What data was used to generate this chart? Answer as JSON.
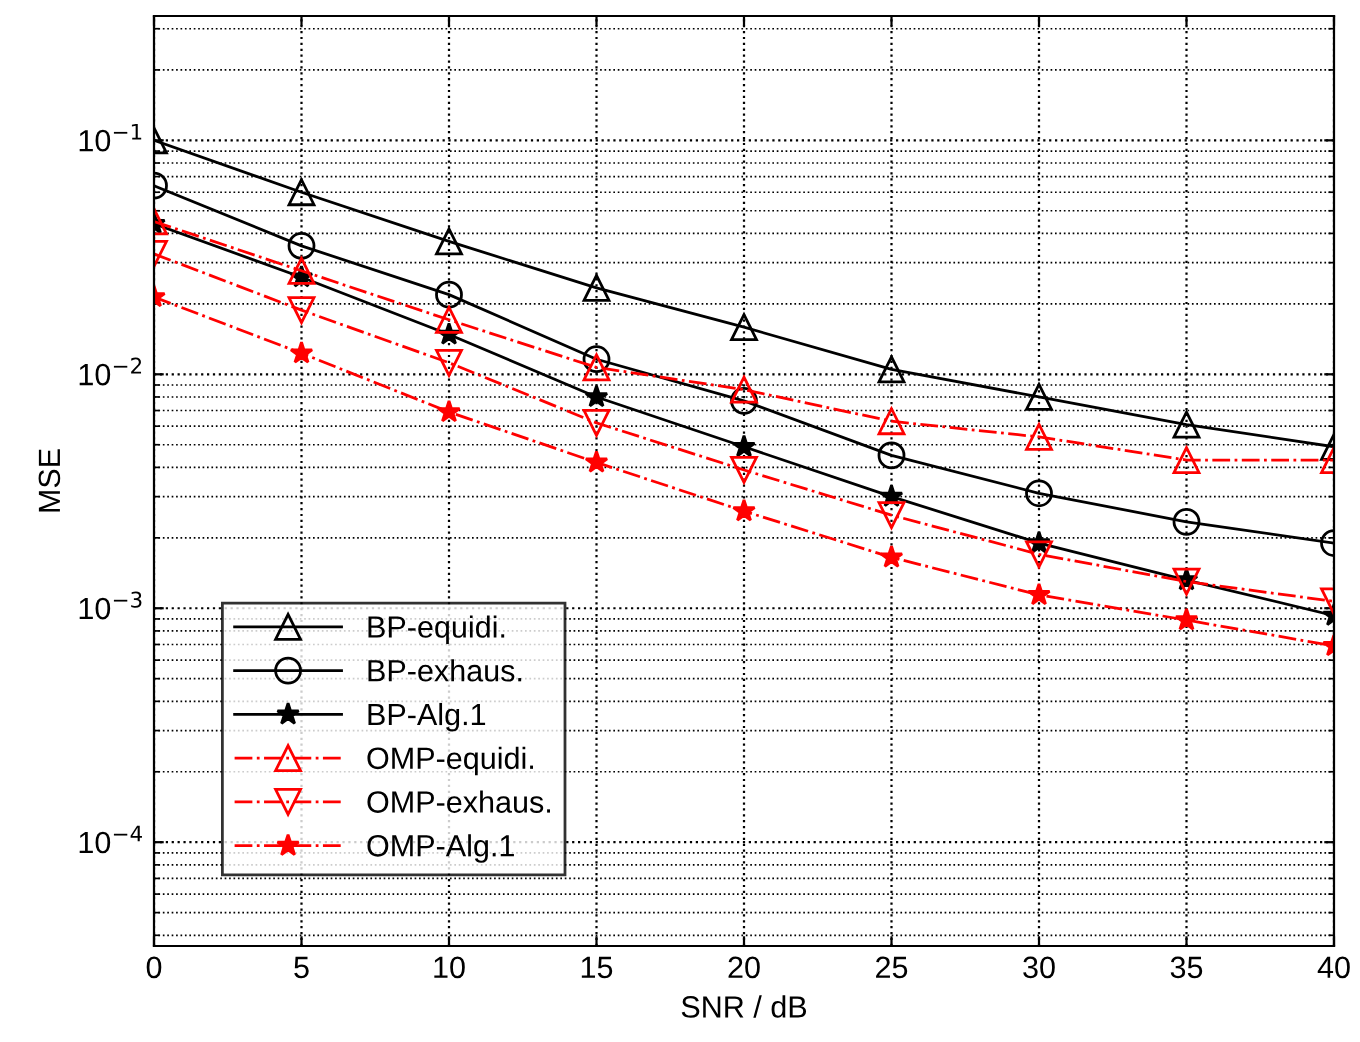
{
  "chart_data": {
    "type": "line",
    "xlabel": "SNR / dB",
    "ylabel": "MSE",
    "log": "y",
    "grid": true,
    "legend": "bottom left",
    "x": [
      0,
      5,
      10,
      15,
      20,
      25,
      30,
      35,
      40
    ],
    "xlim": [
      0,
      40
    ],
    "xticks": [
      0,
      5,
      10,
      15,
      20,
      25,
      30,
      35,
      40
    ],
    "ylim": [
      3.6e-05,
      0.34
    ],
    "yticks": [
      {
        "value": 0.0001,
        "label": "10$^{−4}$"
      },
      {
        "value": 0.001,
        "label": "10$^{−3}$"
      },
      {
        "value": 0.01,
        "label": "10$^{−2}$"
      },
      {
        "value": 0.1,
        "label": "10$^{−1}$"
      }
    ],
    "series": [
      {
        "name": "BP-equidi.",
        "color": "#000000",
        "marker": "triangle",
        "line_style": "solid",
        "values": [
          0.1,
          0.06,
          0.037,
          0.0234,
          0.0159,
          0.0105,
          0.008,
          0.0061,
          0.0049
        ]
      },
      {
        "name": "BP-exhaus.",
        "color": "#000000",
        "marker": "circle",
        "line_style": "solid",
        "values": [
          0.064,
          0.0354,
          0.0219,
          0.0116,
          0.0077,
          0.0045,
          0.0031,
          0.00234,
          0.0019
        ]
      },
      {
        "name": "BP-Alg.1",
        "color": "#000000",
        "marker": "star",
        "line_style": "solid",
        "values": [
          0.044,
          0.026,
          0.0148,
          0.008,
          0.0049,
          0.003,
          0.0019,
          0.00132,
          0.00093
        ]
      },
      {
        "name": "OMP-equidi.",
        "color": "#ff0000",
        "marker": "triangle",
        "line_style": "dashdot",
        "values": [
          0.045,
          0.0277,
          0.0171,
          0.0107,
          0.0086,
          0.0063,
          0.0054,
          0.0043,
          0.0043
        ]
      },
      {
        "name": "OMP-exhaus.",
        "color": "#ff0000",
        "marker": "triangle_down",
        "line_style": "dashdot",
        "values": [
          0.0327,
          0.0188,
          0.0112,
          0.0062,
          0.0039,
          0.0025,
          0.0017,
          0.0013,
          0.00107
        ]
      },
      {
        "name": "OMP-Alg.1",
        "color": "#ff0000",
        "marker": "star",
        "line_style": "dashdot",
        "values": [
          0.0214,
          0.0123,
          0.0069,
          0.0042,
          0.0026,
          0.00165,
          0.00114,
          0.00089,
          0.00069
        ]
      }
    ]
  }
}
